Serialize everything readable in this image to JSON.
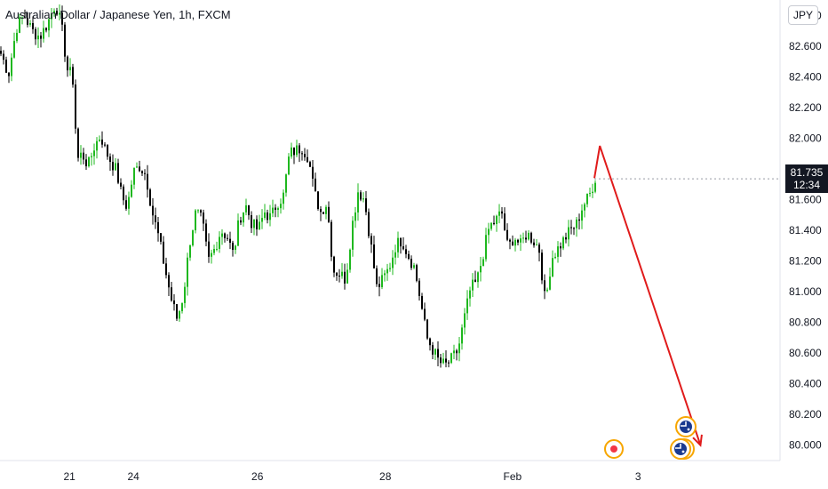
{
  "header": {
    "symbol_title": "Australian Dollar / Japanese Yen, 1h, FXCM"
  },
  "price_axis": {
    "currency": "JPY",
    "current_price": "81.735",
    "countdown": "12:34"
  },
  "colors": {
    "up": "#089981",
    "up_bright": "#1fb81f",
    "down": "#000000",
    "arrow": "#e01b1b",
    "price_tag": "#131722"
  },
  "chart_data": {
    "type": "candlestick",
    "title": "Australian Dollar / Japanese Yen, 1h, FXCM",
    "ylim": [
      79.9,
      82.9
    ],
    "y_ticks": [
      "82.800",
      "82.600",
      "82.400",
      "82.200",
      "82.000",
      "81.800",
      "81.600",
      "81.400",
      "81.200",
      "81.000",
      "80.800",
      "80.600",
      "80.400",
      "80.200",
      "80.000"
    ],
    "x_ticks": [
      "21",
      "24",
      "26",
      "28",
      "Feb",
      "3"
    ],
    "x_range": [
      0,
      1
    ],
    "x_tick_positions": [
      0.089,
      0.171,
      0.33,
      0.494,
      0.657,
      0.818
    ],
    "close_path": [
      [
        0.0,
        82.55
      ],
      [
        0.01,
        82.42
      ],
      [
        0.02,
        82.72
      ],
      [
        0.03,
        82.8
      ],
      [
        0.04,
        82.7
      ],
      [
        0.05,
        82.66
      ],
      [
        0.06,
        82.75
      ],
      [
        0.07,
        82.88
      ],
      [
        0.078,
        82.72
      ],
      [
        0.085,
        82.45
      ],
      [
        0.092,
        82.4
      ],
      [
        0.098,
        81.86
      ],
      [
        0.104,
        81.9
      ],
      [
        0.112,
        81.82
      ],
      [
        0.12,
        81.95
      ],
      [
        0.128,
        82.02
      ],
      [
        0.134,
        81.92
      ],
      [
        0.14,
        81.86
      ],
      [
        0.148,
        81.79
      ],
      [
        0.155,
        81.62
      ],
      [
        0.162,
        81.55
      ],
      [
        0.17,
        81.78
      ],
      [
        0.178,
        81.82
      ],
      [
        0.186,
        81.76
      ],
      [
        0.194,
        81.52
      ],
      [
        0.202,
        81.36
      ],
      [
        0.21,
        81.16
      ],
      [
        0.218,
        80.96
      ],
      [
        0.226,
        80.82
      ],
      [
        0.234,
        80.98
      ],
      [
        0.242,
        81.32
      ],
      [
        0.25,
        81.52
      ],
      [
        0.258,
        81.46
      ],
      [
        0.266,
        81.2
      ],
      [
        0.274,
        81.28
      ],
      [
        0.282,
        81.4
      ],
      [
        0.29,
        81.36
      ],
      [
        0.298,
        81.24
      ],
      [
        0.306,
        81.48
      ],
      [
        0.314,
        81.56
      ],
      [
        0.322,
        81.44
      ],
      [
        0.33,
        81.4
      ],
      [
        0.338,
        81.52
      ],
      [
        0.346,
        81.48
      ],
      [
        0.354,
        81.58
      ],
      [
        0.362,
        81.62
      ],
      [
        0.37,
        81.9
      ],
      [
        0.378,
        81.92
      ],
      [
        0.386,
        81.94
      ],
      [
        0.394,
        81.88
      ],
      [
        0.402,
        81.64
      ],
      [
        0.41,
        81.52
      ],
      [
        0.418,
        81.58
      ],
      [
        0.426,
        81.14
      ],
      [
        0.434,
        81.12
      ],
      [
        0.442,
        81.08
      ],
      [
        0.45,
        81.42
      ],
      [
        0.458,
        81.66
      ],
      [
        0.466,
        81.6
      ],
      [
        0.474,
        81.32
      ],
      [
        0.482,
        81.02
      ],
      [
        0.49,
        81.08
      ],
      [
        0.498,
        81.16
      ],
      [
        0.506,
        81.3
      ],
      [
        0.514,
        81.34
      ],
      [
        0.522,
        81.24
      ],
      [
        0.53,
        81.16
      ],
      [
        0.538,
        80.94
      ],
      [
        0.546,
        80.7
      ],
      [
        0.554,
        80.62
      ],
      [
        0.562,
        80.54
      ],
      [
        0.57,
        80.52
      ],
      [
        0.578,
        80.56
      ],
      [
        0.586,
        80.62
      ],
      [
        0.594,
        80.82
      ],
      [
        0.602,
        81.02
      ],
      [
        0.61,
        81.06
      ],
      [
        0.618,
        81.24
      ],
      [
        0.626,
        81.42
      ],
      [
        0.634,
        81.46
      ],
      [
        0.642,
        81.52
      ],
      [
        0.65,
        81.28
      ],
      [
        0.658,
        81.36
      ],
      [
        0.666,
        81.3
      ],
      [
        0.674,
        81.38
      ],
      [
        0.682,
        81.34
      ],
      [
        0.69,
        81.28
      ],
      [
        0.698,
        80.92
      ],
      [
        0.706,
        81.22
      ],
      [
        0.714,
        81.28
      ],
      [
        0.722,
        81.34
      ],
      [
        0.73,
        81.4
      ],
      [
        0.738,
        81.44
      ],
      [
        0.746,
        81.56
      ],
      [
        0.754,
        81.62
      ],
      [
        0.762,
        81.74
      ]
    ],
    "projection_arrow": {
      "points": [
        [
          0.762,
          81.74
        ],
        [
          0.769,
          81.95
        ],
        [
          0.898,
          80.0
        ]
      ]
    },
    "current_price": 81.735
  },
  "events": [
    {
      "name": "event-marker-red"
    },
    {
      "name": "event-marker-flags"
    },
    {
      "name": "event-marker-flags-2"
    }
  ]
}
